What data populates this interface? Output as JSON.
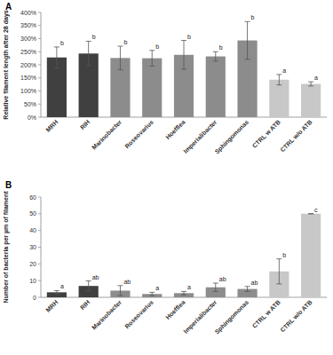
{
  "chart_data": [
    {
      "type": "bar",
      "title": "A",
      "y_label": "Relative filament length after 28 days",
      "categories": [
        "MRH",
        "RIH",
        "Marinobacter",
        "Roseovarius",
        "Hoefflea",
        "Imperialibacter",
        "Sphingomonas",
        "CTRL w ATB",
        "CTRL w/o ATB"
      ],
      "values": [
        228,
        243,
        226,
        225,
        238,
        232,
        293,
        143,
        127
      ],
      "errors": [
        40,
        47,
        45,
        30,
        55,
        18,
        72,
        20,
        8
      ],
      "annotations": [
        "b",
        "b",
        "b",
        "b",
        "b",
        "b",
        "b",
        "a",
        "a"
      ],
      "colors": [
        "#404040",
        "#404040",
        "#8c8c8c",
        "#8c8c8c",
        "#8c8c8c",
        "#8c8c8c",
        "#8c8c8c",
        "#c8c8c8",
        "#c8c8c8"
      ],
      "ylim": [
        0,
        400
      ],
      "yticks": [
        {
          "value": 0,
          "label": "0%"
        },
        {
          "value": 50,
          "label": "50%"
        },
        {
          "value": 100,
          "label": "100%"
        },
        {
          "value": 150,
          "label": "150%"
        },
        {
          "value": 200,
          "label": "200%"
        },
        {
          "value": 250,
          "label": "250%"
        },
        {
          "value": 300,
          "label": "300%"
        },
        {
          "value": 350,
          "label": "350%"
        },
        {
          "value": 400,
          "label": "400%"
        }
      ],
      "grid": false
    },
    {
      "type": "bar",
      "title": "B",
      "y_label": "Number of bacteria per µm of filament",
      "categories": [
        "MRH",
        "RIH",
        "Marinobacter",
        "Roseovarius",
        "Hoefflea",
        "Imperialibacter",
        "Sphingomonas",
        "CTRL w ATB",
        "CTRL w/o ATB"
      ],
      "values": [
        3,
        6.8,
        4,
        2,
        2.5,
        6,
        5,
        15.5,
        50
      ],
      "errors": [
        1,
        3,
        3,
        1,
        1,
        2.5,
        1.5,
        7.5,
        0
      ],
      "annotations": [
        "a",
        "ab",
        "ab",
        "a",
        "a",
        "ab",
        "ab",
        "b",
        "c"
      ],
      "colors": [
        "#404040",
        "#404040",
        "#8c8c8c",
        "#8c8c8c",
        "#8c8c8c",
        "#8c8c8c",
        "#8c8c8c",
        "#c8c8c8",
        "#c8c8c8"
      ],
      "ylim": [
        0,
        60
      ],
      "yticks": [
        0,
        10,
        20,
        30,
        40,
        50,
        60
      ],
      "grid": false
    }
  ]
}
